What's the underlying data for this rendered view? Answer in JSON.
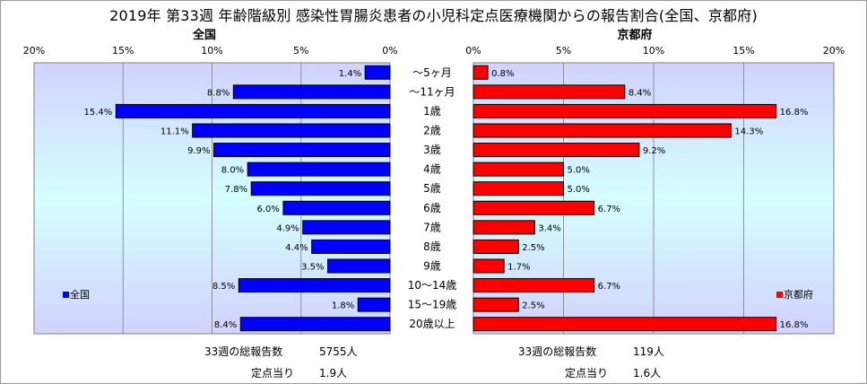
{
  "title": "2019年 第33週 年齢階級別 感染性胃腸炎患者の小児科定点医療機関からの報告割合(全国、京都府)",
  "chart_data": [
    {
      "type": "bar",
      "orientation": "horizontal",
      "direction": "right-to-left",
      "header": "全国",
      "legend": "全国",
      "legend_position": "bottom-left",
      "color": "#0000FF",
      "xlim": [
        0,
        20
      ],
      "ticks": [
        "20%",
        "15%",
        "10%",
        "5%",
        "0%"
      ],
      "grid": true,
      "categories": [
        "～5ヶ月",
        "～11ヶ月",
        "1歳",
        "2歳",
        "3歳",
        "4歳",
        "5歳",
        "6歳",
        "7歳",
        "8歳",
        "9歳",
        "10～14歳",
        "15～19歳",
        "20歳以上"
      ],
      "series": [
        {
          "name": "全国",
          "values": [
            1.4,
            8.8,
            15.4,
            11.1,
            9.9,
            8.0,
            7.8,
            6.0,
            4.9,
            4.4,
            3.5,
            8.5,
            1.8,
            8.4
          ]
        }
      ],
      "data_labels": [
        "1.4%",
        "8.8%",
        "15.4%",
        "11.1%",
        "9.9%",
        "8.0%",
        "7.8%",
        "6.0%",
        "4.9%",
        "4.4%",
        "3.5%",
        "8.5%",
        "1.8%",
        "8.4%"
      ]
    },
    {
      "type": "bar",
      "orientation": "horizontal",
      "direction": "left-to-right",
      "header": "京都府",
      "legend": "京都府",
      "legend_position": "bottom-right",
      "color": "#FF0000",
      "xlim": [
        0,
        20
      ],
      "ticks": [
        "0%",
        "5%",
        "10%",
        "15%",
        "20%"
      ],
      "grid": true,
      "categories": [
        "～5ヶ月",
        "～11ヶ月",
        "1歳",
        "2歳",
        "3歳",
        "4歳",
        "5歳",
        "6歳",
        "7歳",
        "8歳",
        "9歳",
        "10～14歳",
        "15～19歳",
        "20歳以上"
      ],
      "series": [
        {
          "name": "京都府",
          "values": [
            0.8,
            8.4,
            16.8,
            14.3,
            9.2,
            5.0,
            5.0,
            6.7,
            3.4,
            2.5,
            1.7,
            6.7,
            2.5,
            16.8
          ]
        }
      ],
      "data_labels": [
        "0.8%",
        "8.4%",
        "16.8%",
        "14.3%",
        "9.2%",
        "5.0%",
        "5.0%",
        "6.7%",
        "3.4%",
        "2.5%",
        "1.7%",
        "6.7%",
        "2.5%",
        "16.8%"
      ]
    }
  ],
  "footer": {
    "national_total_label": "33週の総報告数",
    "national_total_value": "5755人",
    "national_per_label": "定点当り",
    "national_per_value": "1.9人",
    "kyoto_total_label": "33週の総報告数",
    "kyoto_total_value": "119人",
    "kyoto_per_label": "定点当り",
    "kyoto_per_value": "1.6人"
  }
}
